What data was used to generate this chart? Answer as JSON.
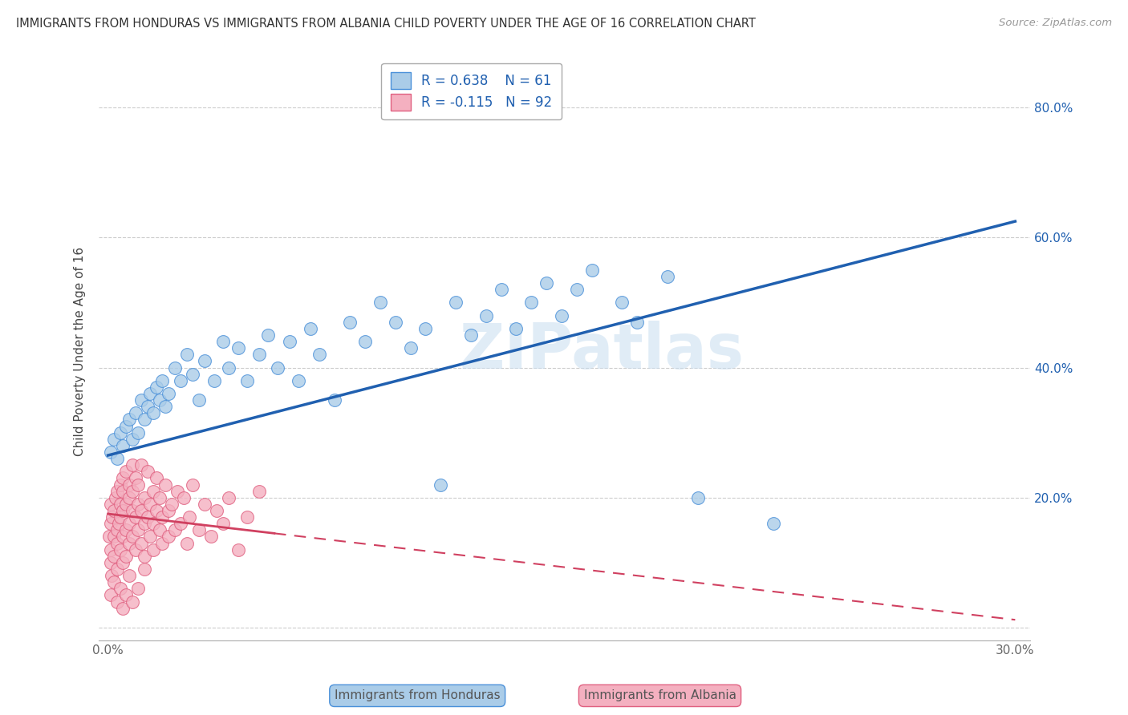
{
  "title": "IMMIGRANTS FROM HONDURAS VS IMMIGRANTS FROM ALBANIA CHILD POVERTY UNDER THE AGE OF 16 CORRELATION CHART",
  "source": "Source: ZipAtlas.com",
  "ylabel": "Child Poverty Under the Age of 16",
  "xlim": [
    -0.003,
    0.305
  ],
  "ylim": [
    -0.02,
    0.87
  ],
  "xticks": [
    0.0,
    0.05,
    0.1,
    0.15,
    0.2,
    0.25,
    0.3
  ],
  "yticks": [
    0.0,
    0.2,
    0.4,
    0.6,
    0.8
  ],
  "ytick_right_labels": [
    "",
    "20.0%",
    "40.0%",
    "60.0%",
    "80.0%"
  ],
  "xtick_labels": [
    "0.0%",
    "",
    "",
    "",
    "",
    "",
    "30.0%"
  ],
  "color_honduras_face": "#aacce8",
  "color_honduras_edge": "#4a90d9",
  "color_albania_face": "#f4b0c0",
  "color_albania_edge": "#e06080",
  "color_trendline_honduras": "#2060b0",
  "color_trendline_albania": "#d04060",
  "background_color": "#ffffff",
  "watermark": "ZIPatlas",
  "honduras_x": [
    0.001,
    0.002,
    0.003,
    0.004,
    0.005,
    0.006,
    0.007,
    0.008,
    0.009,
    0.01,
    0.011,
    0.012,
    0.013,
    0.014,
    0.015,
    0.016,
    0.017,
    0.018,
    0.019,
    0.02,
    0.022,
    0.024,
    0.026,
    0.028,
    0.03,
    0.032,
    0.035,
    0.038,
    0.04,
    0.043,
    0.046,
    0.05,
    0.053,
    0.056,
    0.06,
    0.063,
    0.067,
    0.07,
    0.075,
    0.08,
    0.085,
    0.09,
    0.095,
    0.1,
    0.105,
    0.11,
    0.115,
    0.12,
    0.125,
    0.13,
    0.135,
    0.14,
    0.145,
    0.15,
    0.155,
    0.16,
    0.17,
    0.175,
    0.185,
    0.195,
    0.22
  ],
  "honduras_y": [
    0.27,
    0.29,
    0.26,
    0.3,
    0.28,
    0.31,
    0.32,
    0.29,
    0.33,
    0.3,
    0.35,
    0.32,
    0.34,
    0.36,
    0.33,
    0.37,
    0.35,
    0.38,
    0.34,
    0.36,
    0.4,
    0.38,
    0.42,
    0.39,
    0.35,
    0.41,
    0.38,
    0.44,
    0.4,
    0.43,
    0.38,
    0.42,
    0.45,
    0.4,
    0.44,
    0.38,
    0.46,
    0.42,
    0.35,
    0.47,
    0.44,
    0.5,
    0.47,
    0.43,
    0.46,
    0.22,
    0.5,
    0.45,
    0.48,
    0.52,
    0.46,
    0.5,
    0.53,
    0.48,
    0.52,
    0.55,
    0.5,
    0.47,
    0.54,
    0.2,
    0.16
  ],
  "albania_x": [
    0.0005,
    0.0008,
    0.001,
    0.001,
    0.001,
    0.0012,
    0.0015,
    0.002,
    0.002,
    0.002,
    0.0025,
    0.003,
    0.003,
    0.003,
    0.003,
    0.0035,
    0.004,
    0.004,
    0.004,
    0.004,
    0.005,
    0.005,
    0.005,
    0.005,
    0.005,
    0.006,
    0.006,
    0.006,
    0.006,
    0.007,
    0.007,
    0.007,
    0.007,
    0.008,
    0.008,
    0.008,
    0.008,
    0.009,
    0.009,
    0.009,
    0.01,
    0.01,
    0.01,
    0.011,
    0.011,
    0.011,
    0.012,
    0.012,
    0.012,
    0.013,
    0.013,
    0.014,
    0.014,
    0.015,
    0.015,
    0.015,
    0.016,
    0.016,
    0.017,
    0.017,
    0.018,
    0.018,
    0.019,
    0.02,
    0.02,
    0.021,
    0.022,
    0.023,
    0.024,
    0.025,
    0.026,
    0.027,
    0.028,
    0.03,
    0.032,
    0.034,
    0.036,
    0.038,
    0.04,
    0.043,
    0.046,
    0.05,
    0.001,
    0.002,
    0.003,
    0.004,
    0.005,
    0.006,
    0.007,
    0.008,
    0.01,
    0.012
  ],
  "albania_y": [
    0.14,
    0.1,
    0.16,
    0.19,
    0.12,
    0.08,
    0.17,
    0.18,
    0.14,
    0.11,
    0.2,
    0.15,
    0.21,
    0.13,
    0.09,
    0.16,
    0.17,
    0.22,
    0.12,
    0.19,
    0.23,
    0.18,
    0.14,
    0.1,
    0.21,
    0.19,
    0.15,
    0.24,
    0.11,
    0.2,
    0.16,
    0.22,
    0.13,
    0.18,
    0.25,
    0.14,
    0.21,
    0.17,
    0.23,
    0.12,
    0.19,
    0.15,
    0.22,
    0.18,
    0.13,
    0.25,
    0.2,
    0.16,
    0.11,
    0.17,
    0.24,
    0.19,
    0.14,
    0.21,
    0.16,
    0.12,
    0.18,
    0.23,
    0.15,
    0.2,
    0.17,
    0.13,
    0.22,
    0.18,
    0.14,
    0.19,
    0.15,
    0.21,
    0.16,
    0.2,
    0.13,
    0.17,
    0.22,
    0.15,
    0.19,
    0.14,
    0.18,
    0.16,
    0.2,
    0.12,
    0.17,
    0.21,
    0.05,
    0.07,
    0.04,
    0.06,
    0.03,
    0.05,
    0.08,
    0.04,
    0.06,
    0.09
  ],
  "trendline_honduras_x0": 0.0,
  "trendline_honduras_y0": 0.265,
  "trendline_honduras_x1": 0.3,
  "trendline_honduras_y1": 0.625,
  "trendline_albania_solid_x0": 0.0,
  "trendline_albania_solid_y0": 0.175,
  "trendline_albania_solid_x1": 0.055,
  "trendline_albania_solid_y1": 0.145,
  "trendline_albania_dash_x0": 0.055,
  "trendline_albania_dash_y0": 0.145,
  "trendline_albania_dash_x1": 0.3,
  "trendline_albania_dash_y1": 0.012
}
